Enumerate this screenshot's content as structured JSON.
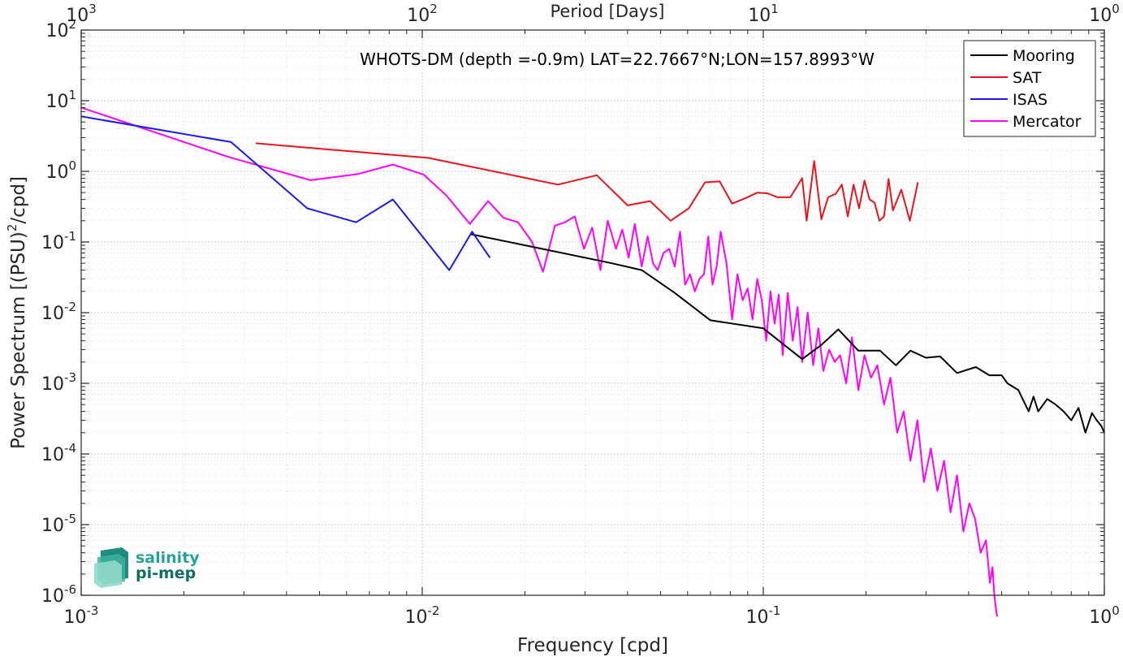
{
  "chart_data": {
    "type": "line",
    "title": "WHOTS-DM (depth =-0.9m) LAT=22.7667°N;LON=157.8993°W",
    "xlabel": "Frequency [cpd]",
    "ylabel_main": "Power Spectrum [(PSU)",
    "ylabel_sup": "2",
    "ylabel_end": "/cpd]",
    "top_xlabel": "Period [Days]",
    "x_scale": "log",
    "y_scale": "log",
    "xlim": [
      0.001,
      1
    ],
    "ylim": [
      1e-06,
      100
    ],
    "grid": true,
    "legend_position": "top-right",
    "x_ticks": [
      {
        "value": 0.001,
        "base": "10",
        "exp": "-3"
      },
      {
        "value": 0.01,
        "base": "10",
        "exp": "-2"
      },
      {
        "value": 0.1,
        "base": "10",
        "exp": "-1"
      },
      {
        "value": 1,
        "base": "10",
        "exp": "0"
      }
    ],
    "top_ticks": [
      {
        "value": 0.001,
        "base": "10",
        "exp": "3"
      },
      {
        "value": 0.01,
        "base": "10",
        "exp": "2"
      },
      {
        "value": 0.1,
        "base": "10",
        "exp": "1"
      },
      {
        "value": 1,
        "base": "10",
        "exp": "0"
      }
    ],
    "y_ticks": [
      {
        "value": 100,
        "base": "10",
        "exp": "2"
      },
      {
        "value": 10,
        "base": "10",
        "exp": "1"
      },
      {
        "value": 1,
        "base": "10",
        "exp": "0"
      },
      {
        "value": 0.1,
        "base": "10",
        "exp": "-1"
      },
      {
        "value": 0.01,
        "base": "10",
        "exp": "-2"
      },
      {
        "value": 0.001,
        "base": "10",
        "exp": "-3"
      },
      {
        "value": 0.0001,
        "base": "10",
        "exp": "-4"
      },
      {
        "value": 1e-05,
        "base": "10",
        "exp": "-5"
      },
      {
        "value": 1e-06,
        "base": "10",
        "exp": "-6"
      }
    ],
    "series": [
      {
        "name": "Mooring",
        "color": "#000000",
        "x": [
          0.0138,
          0.024,
          0.036,
          0.044,
          0.055,
          0.07,
          0.1,
          0.13,
          0.148,
          0.166,
          0.19,
          0.22,
          0.245,
          0.27,
          0.3,
          0.33,
          0.37,
          0.42,
          0.46,
          0.5,
          0.52,
          0.56,
          0.6,
          0.62,
          0.64,
          0.68,
          0.72,
          0.76,
          0.8,
          0.84,
          0.88,
          0.92,
          0.95,
          0.98,
          1.0
        ],
        "y": [
          0.13,
          0.075,
          0.05,
          0.04,
          0.019,
          0.0078,
          0.006,
          0.0022,
          0.0035,
          0.0058,
          0.0029,
          0.0029,
          0.0018,
          0.0029,
          0.0023,
          0.0024,
          0.0014,
          0.0017,
          0.0013,
          0.0013,
          0.001,
          0.0008,
          0.0004,
          0.00065,
          0.0004,
          0.0006,
          0.0005,
          0.0004,
          0.0003,
          0.00045,
          0.0002,
          0.00038,
          0.0003,
          0.00025,
          0.0002
        ]
      },
      {
        "name": "SAT",
        "color": "#e8141c",
        "x": [
          0.00325,
          0.0104,
          0.025,
          0.0325,
          0.04,
          0.0466,
          0.0535,
          0.0605,
          0.0675,
          0.0745,
          0.081,
          0.089,
          0.096,
          0.103,
          0.11,
          0.12,
          0.13,
          0.134,
          0.141,
          0.148,
          0.155,
          0.163,
          0.17,
          0.177,
          0.184,
          0.191,
          0.198,
          0.205,
          0.212,
          0.219,
          0.226,
          0.233,
          0.24,
          0.254,
          0.269,
          0.284
        ],
        "y": [
          2.5,
          1.55,
          0.65,
          0.88,
          0.33,
          0.38,
          0.2,
          0.3,
          0.7,
          0.72,
          0.35,
          0.42,
          0.5,
          0.49,
          0.43,
          0.43,
          0.8,
          0.2,
          1.4,
          0.21,
          0.43,
          0.48,
          0.65,
          0.23,
          0.65,
          0.3,
          0.74,
          0.4,
          0.36,
          0.2,
          0.23,
          0.78,
          0.28,
          0.55,
          0.2,
          0.7
        ]
      },
      {
        "name": "ISAS",
        "color": "#1a1ae6",
        "x": [
          0.001,
          0.00275,
          0.0046,
          0.0064,
          0.0082,
          0.012,
          0.014,
          0.0158
        ],
        "y": [
          6,
          2.6,
          0.3,
          0.19,
          0.4,
          0.04,
          0.14,
          0.06
        ]
      },
      {
        "name": "Mercator",
        "color": "#ff00ff",
        "x": [
          0.001,
          0.0027,
          0.0047,
          0.0065,
          0.0082,
          0.0101,
          0.0118,
          0.0138,
          0.0156,
          0.0173,
          0.0191,
          0.021,
          0.0226,
          0.0245,
          0.0262,
          0.028,
          0.0298,
          0.0315,
          0.0333,
          0.035,
          0.037,
          0.0386,
          0.0403,
          0.042,
          0.044,
          0.0458,
          0.0475,
          0.049,
          0.051,
          0.053,
          0.055,
          0.057,
          0.059,
          0.061,
          0.063,
          0.065,
          0.067,
          0.069,
          0.071,
          0.073,
          0.075,
          0.078,
          0.081,
          0.084,
          0.087,
          0.09,
          0.093,
          0.096,
          0.099,
          0.102,
          0.105,
          0.108,
          0.111,
          0.114,
          0.118,
          0.122,
          0.126,
          0.13,
          0.135,
          0.14,
          0.145,
          0.15,
          0.156,
          0.162,
          0.168,
          0.175,
          0.182,
          0.19,
          0.198,
          0.207,
          0.216,
          0.226,
          0.236,
          0.247,
          0.258,
          0.27,
          0.283,
          0.296,
          0.31,
          0.324,
          0.339,
          0.354,
          0.37,
          0.386,
          0.402,
          0.418,
          0.434,
          0.45,
          0.462,
          0.47,
          0.476,
          0.48,
          0.485
        ],
        "y": [
          8,
          1.6,
          0.75,
          0.92,
          1.25,
          0.9,
          0.45,
          0.18,
          0.38,
          0.22,
          0.19,
          0.1,
          0.038,
          0.17,
          0.19,
          0.23,
          0.08,
          0.16,
          0.04,
          0.2,
          0.08,
          0.15,
          0.06,
          0.18,
          0.045,
          0.12,
          0.05,
          0.04,
          0.07,
          0.08,
          0.045,
          0.14,
          0.025,
          0.035,
          0.02,
          0.03,
          0.035,
          0.12,
          0.025,
          0.045,
          0.14,
          0.05,
          0.008,
          0.035,
          0.015,
          0.022,
          0.008,
          0.03,
          0.015,
          0.004,
          0.02,
          0.007,
          0.018,
          0.0025,
          0.019,
          0.004,
          0.012,
          0.002,
          0.01,
          0.0018,
          0.006,
          0.0015,
          0.003,
          0.002,
          0.0025,
          0.001,
          0.0045,
          0.0008,
          0.0025,
          0.0012,
          0.0018,
          0.0005,
          0.0012,
          0.0002,
          0.0004,
          8e-05,
          0.0003,
          4e-05,
          0.00012,
          3e-05,
          8e-05,
          1.5e-05,
          5e-05,
          8e-06,
          2e-05,
          1.2e-05,
          4e-06,
          6e-06,
          1.5e-06,
          2.5e-06,
          1e-06,
          7e-07,
          5e-07
        ]
      }
    ]
  },
  "logo": {
    "line1": "salinity",
    "line2": "pi-mep",
    "color": "#2aa198"
  }
}
